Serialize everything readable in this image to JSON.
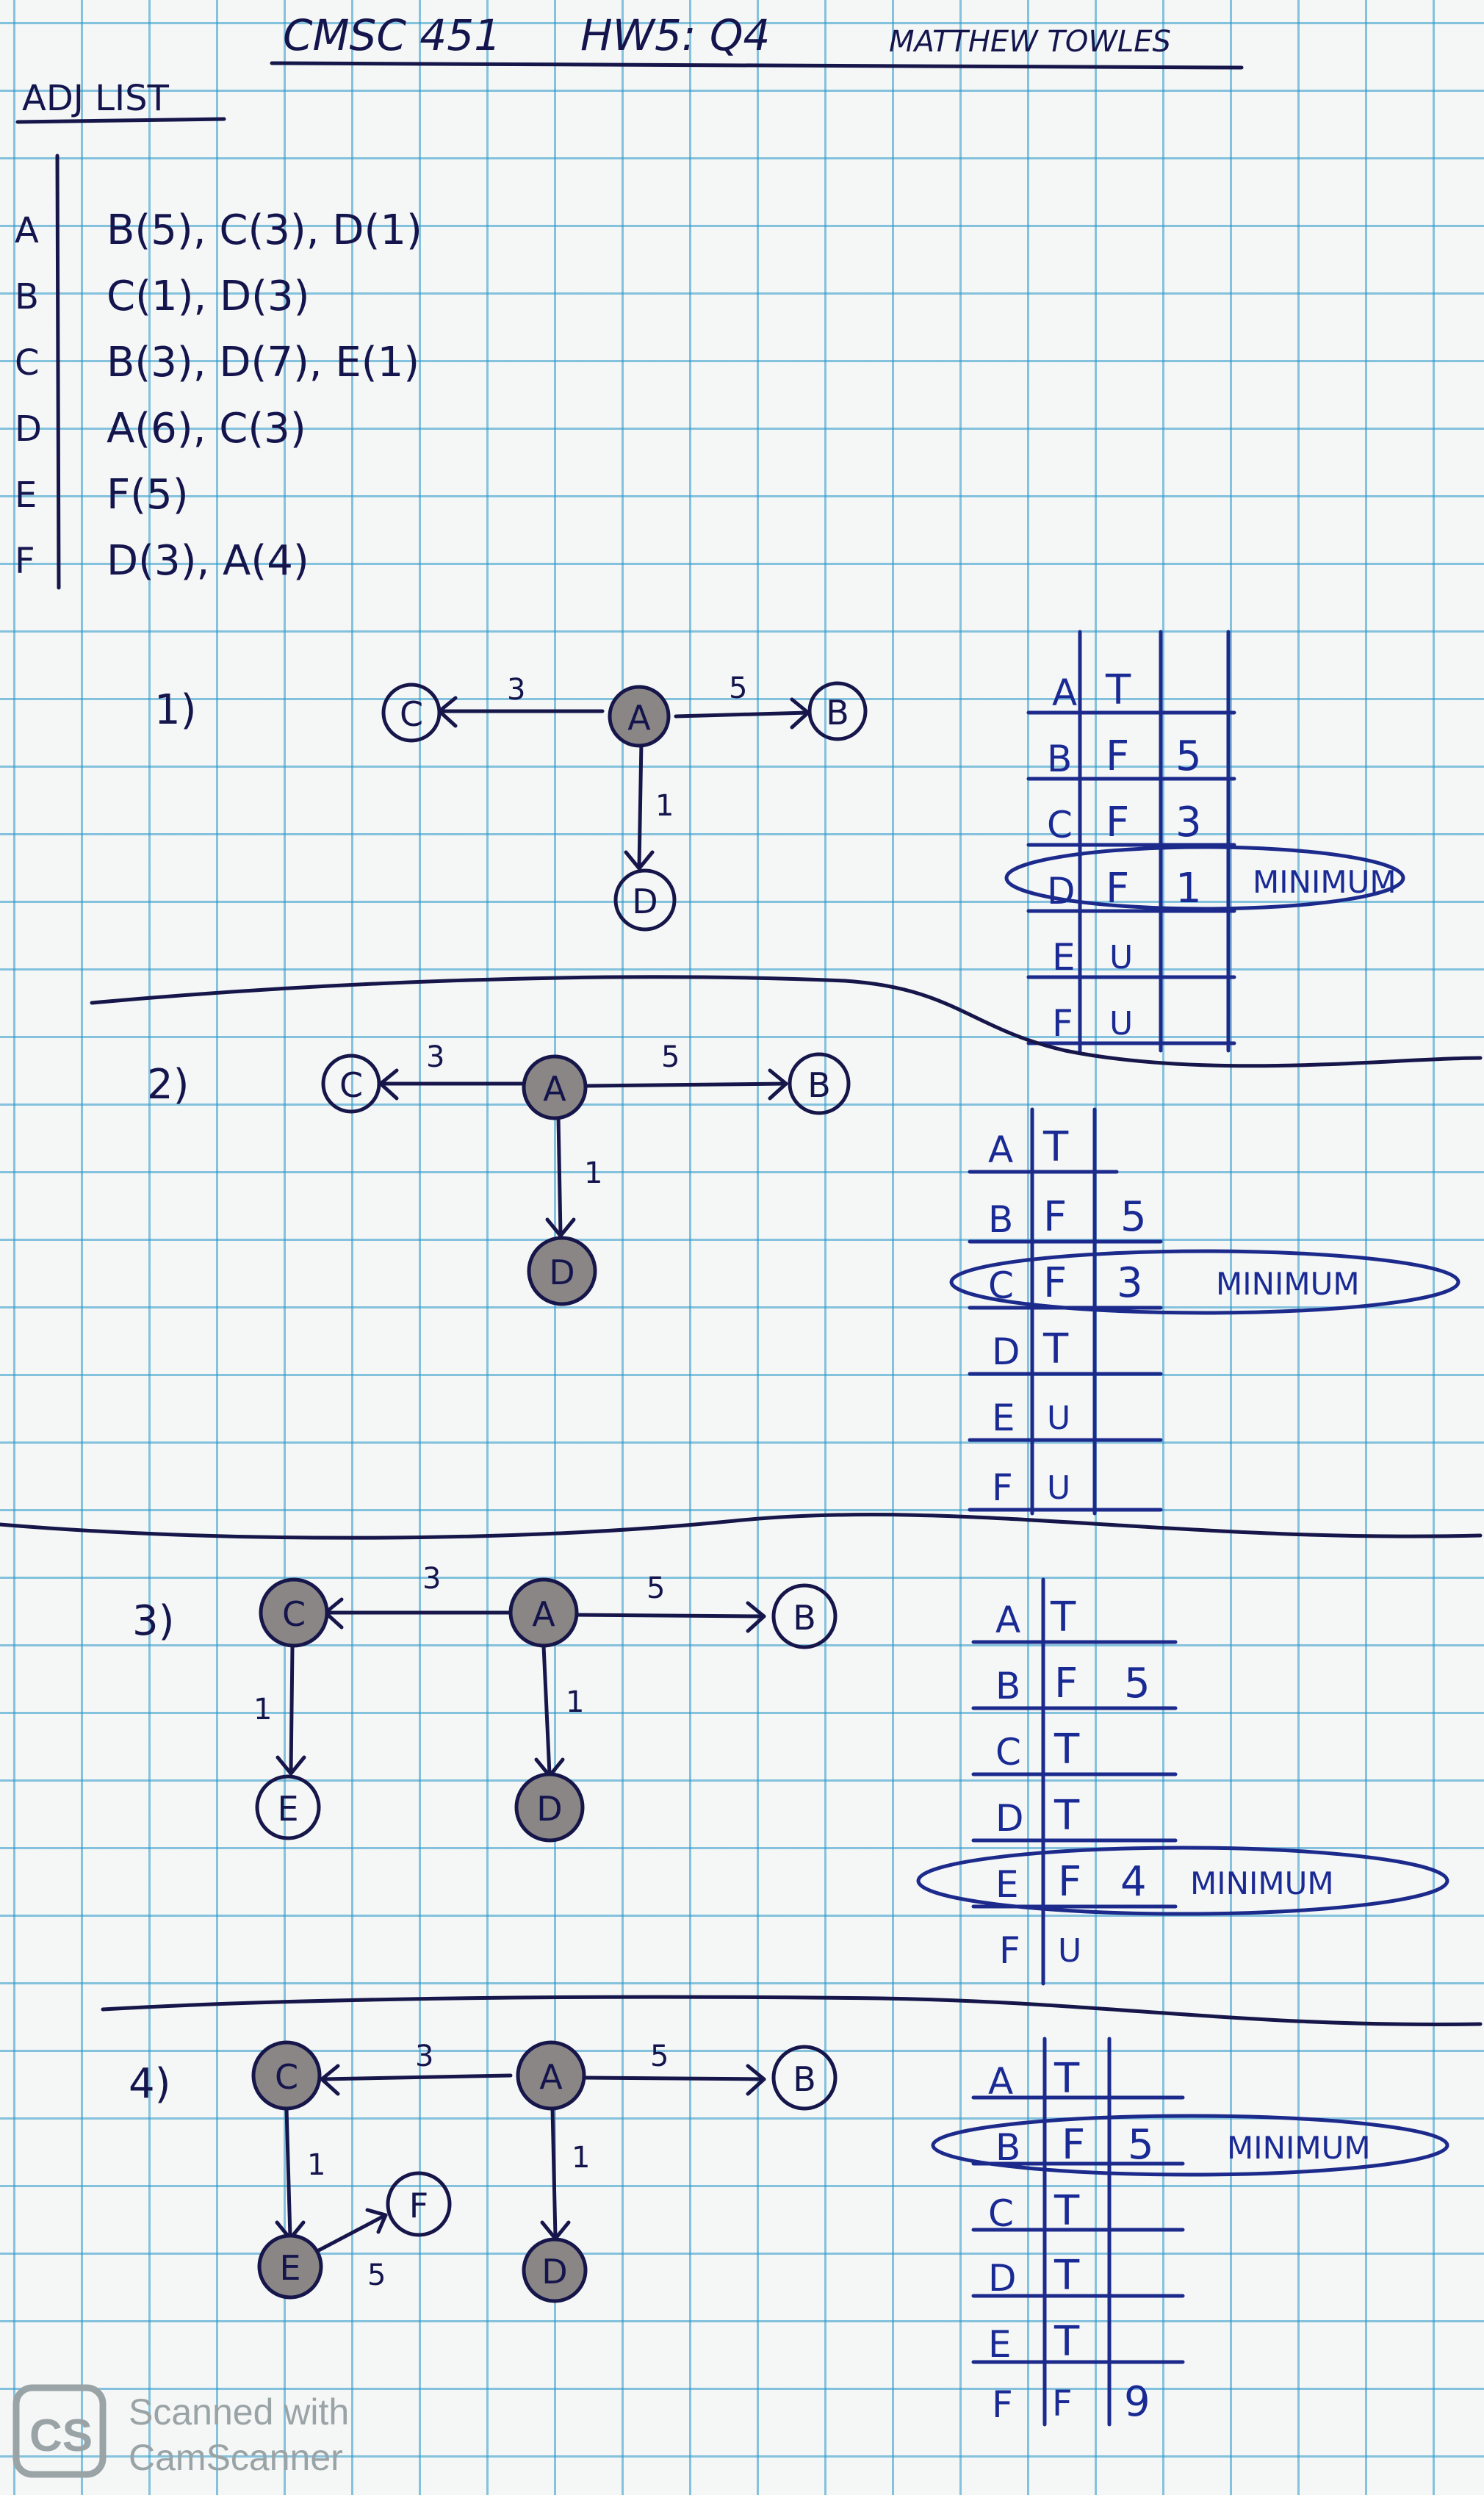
{
  "header": {
    "course": "CMSC 451",
    "assignment": "HW5: Q4",
    "author": "MATTHEW TOWLES"
  },
  "adjacency": {
    "title": "ADJ LIST",
    "rows": [
      {
        "node": "A",
        "edges": "B(5), C(3), D(1)"
      },
      {
        "node": "B",
        "edges": "C(1), D(3)"
      },
      {
        "node": "C",
        "edges": "B(3), D(7), E(1)"
      },
      {
        "node": "D",
        "edges": "A(6), C(3)"
      },
      {
        "node": "E",
        "edges": "F(5)"
      },
      {
        "node": "F",
        "edges": "D(3), A(4)"
      }
    ]
  },
  "steps": [
    {
      "label": "1)",
      "nodes": [
        "C",
        "A",
        "B",
        "D"
      ],
      "edges": [
        "3",
        "5",
        "1"
      ],
      "table": [
        [
          "A",
          "T",
          ""
        ],
        [
          "B",
          "F",
          "5"
        ],
        [
          "C",
          "F",
          "3"
        ],
        [
          "D",
          "F",
          "1"
        ],
        [
          "E",
          "U",
          ""
        ],
        [
          "F",
          "U",
          ""
        ]
      ],
      "minimum_row": "D",
      "minimum_label": "MINIMUM"
    },
    {
      "label": "2)",
      "nodes": [
        "C",
        "A",
        "B",
        "D"
      ],
      "edges": [
        "3",
        "5",
        "1"
      ],
      "table": [
        [
          "A",
          "T",
          ""
        ],
        [
          "B",
          "F",
          "5"
        ],
        [
          "C",
          "F",
          "3"
        ],
        [
          "D",
          "T",
          ""
        ],
        [
          "E",
          "U",
          ""
        ],
        [
          "F",
          "U",
          ""
        ]
      ],
      "minimum_row": "C",
      "minimum_label": "MINIMUM"
    },
    {
      "label": "3)",
      "nodes": [
        "C",
        "A",
        "B",
        "E",
        "D"
      ],
      "edges": [
        "3",
        "5",
        "1",
        "1"
      ],
      "table": [
        [
          "A",
          "T",
          ""
        ],
        [
          "B",
          "F",
          "5"
        ],
        [
          "C",
          "T",
          ""
        ],
        [
          "D",
          "T",
          ""
        ],
        [
          "E",
          "F",
          "4"
        ],
        [
          "F",
          "U",
          ""
        ]
      ],
      "minimum_row": "E",
      "minimum_label": "MINIMUM"
    },
    {
      "label": "4)",
      "nodes": [
        "C",
        "A",
        "B",
        "F",
        "E",
        "D"
      ],
      "edges": [
        "3",
        "5",
        "1",
        "1",
        "5"
      ],
      "table": [
        [
          "A",
          "T",
          ""
        ],
        [
          "B",
          "F",
          "5"
        ],
        [
          "C",
          "T",
          ""
        ],
        [
          "D",
          "T",
          ""
        ],
        [
          "E",
          "T",
          ""
        ],
        [
          "F",
          "F",
          "9"
        ]
      ],
      "minimum_row": "B",
      "minimum_label": "MINIMUM"
    }
  ],
  "watermark": {
    "logo": "CS",
    "line1": "Scanned with",
    "line2": "CamScanner"
  },
  "colors": {
    "ink": "#16164a",
    "blue_ink": "#1a2a94",
    "grid": "#2896c8",
    "visited_fill": "#8a8686"
  }
}
